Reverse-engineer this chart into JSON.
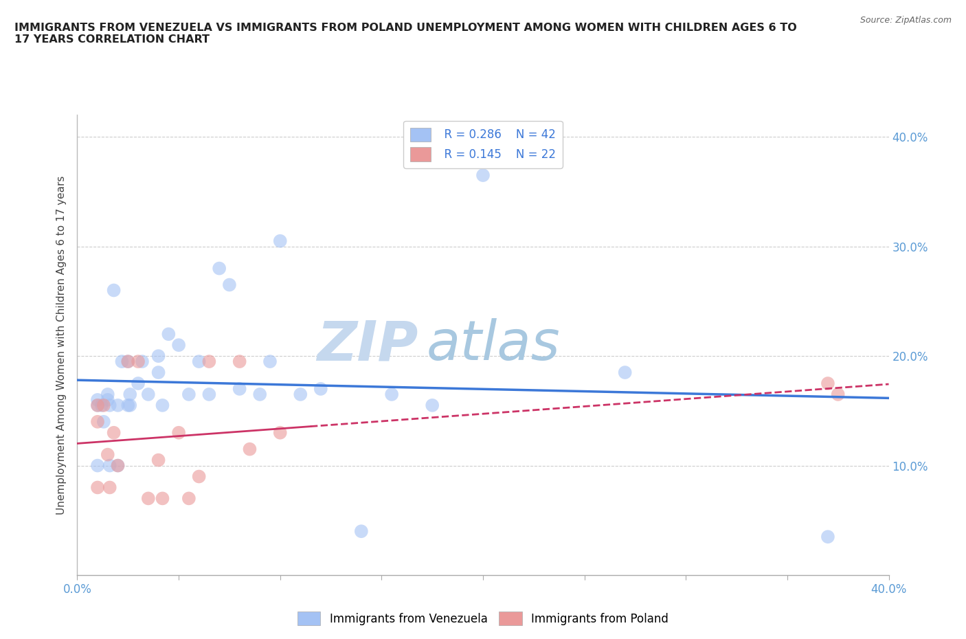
{
  "title": "IMMIGRANTS FROM VENEZUELA VS IMMIGRANTS FROM POLAND UNEMPLOYMENT AMONG WOMEN WITH CHILDREN AGES 6 TO\n17 YEARS CORRELATION CHART",
  "source": "Source: ZipAtlas.com",
  "ylabel": "Unemployment Among Women with Children Ages 6 to 17 years",
  "xlim": [
    0.0,
    0.4
  ],
  "ylim": [
    0.0,
    0.42
  ],
  "legend_blue_R": "R = 0.286",
  "legend_blue_N": "N = 42",
  "legend_pink_R": "R = 0.145",
  "legend_pink_N": "N = 22",
  "blue_color": "#a4c2f4",
  "pink_color": "#ea9999",
  "blue_line_color": "#3c78d8",
  "pink_line_color": "#cc3366",
  "venezuela_x": [
    0.01,
    0.01,
    0.01,
    0.012,
    0.013,
    0.015,
    0.015,
    0.016,
    0.016,
    0.018,
    0.02,
    0.02,
    0.022,
    0.025,
    0.025,
    0.026,
    0.026,
    0.03,
    0.032,
    0.035,
    0.04,
    0.04,
    0.042,
    0.045,
    0.05,
    0.055,
    0.06,
    0.065,
    0.07,
    0.075,
    0.08,
    0.09,
    0.095,
    0.1,
    0.11,
    0.12,
    0.14,
    0.155,
    0.175,
    0.2,
    0.27,
    0.37
  ],
  "venezuela_y": [
    0.16,
    0.155,
    0.1,
    0.155,
    0.14,
    0.165,
    0.16,
    0.155,
    0.1,
    0.26,
    0.155,
    0.1,
    0.195,
    0.195,
    0.155,
    0.165,
    0.155,
    0.175,
    0.195,
    0.165,
    0.2,
    0.185,
    0.155,
    0.22,
    0.21,
    0.165,
    0.195,
    0.165,
    0.28,
    0.265,
    0.17,
    0.165,
    0.195,
    0.305,
    0.165,
    0.17,
    0.04,
    0.165,
    0.155,
    0.365,
    0.185,
    0.035
  ],
  "poland_x": [
    0.01,
    0.01,
    0.01,
    0.013,
    0.015,
    0.016,
    0.018,
    0.02,
    0.025,
    0.03,
    0.035,
    0.04,
    0.042,
    0.05,
    0.055,
    0.06,
    0.065,
    0.08,
    0.085,
    0.1,
    0.37,
    0.375
  ],
  "poland_y": [
    0.155,
    0.14,
    0.08,
    0.155,
    0.11,
    0.08,
    0.13,
    0.1,
    0.195,
    0.195,
    0.07,
    0.105,
    0.07,
    0.13,
    0.07,
    0.09,
    0.195,
    0.195,
    0.115,
    0.13,
    0.175,
    0.165
  ]
}
